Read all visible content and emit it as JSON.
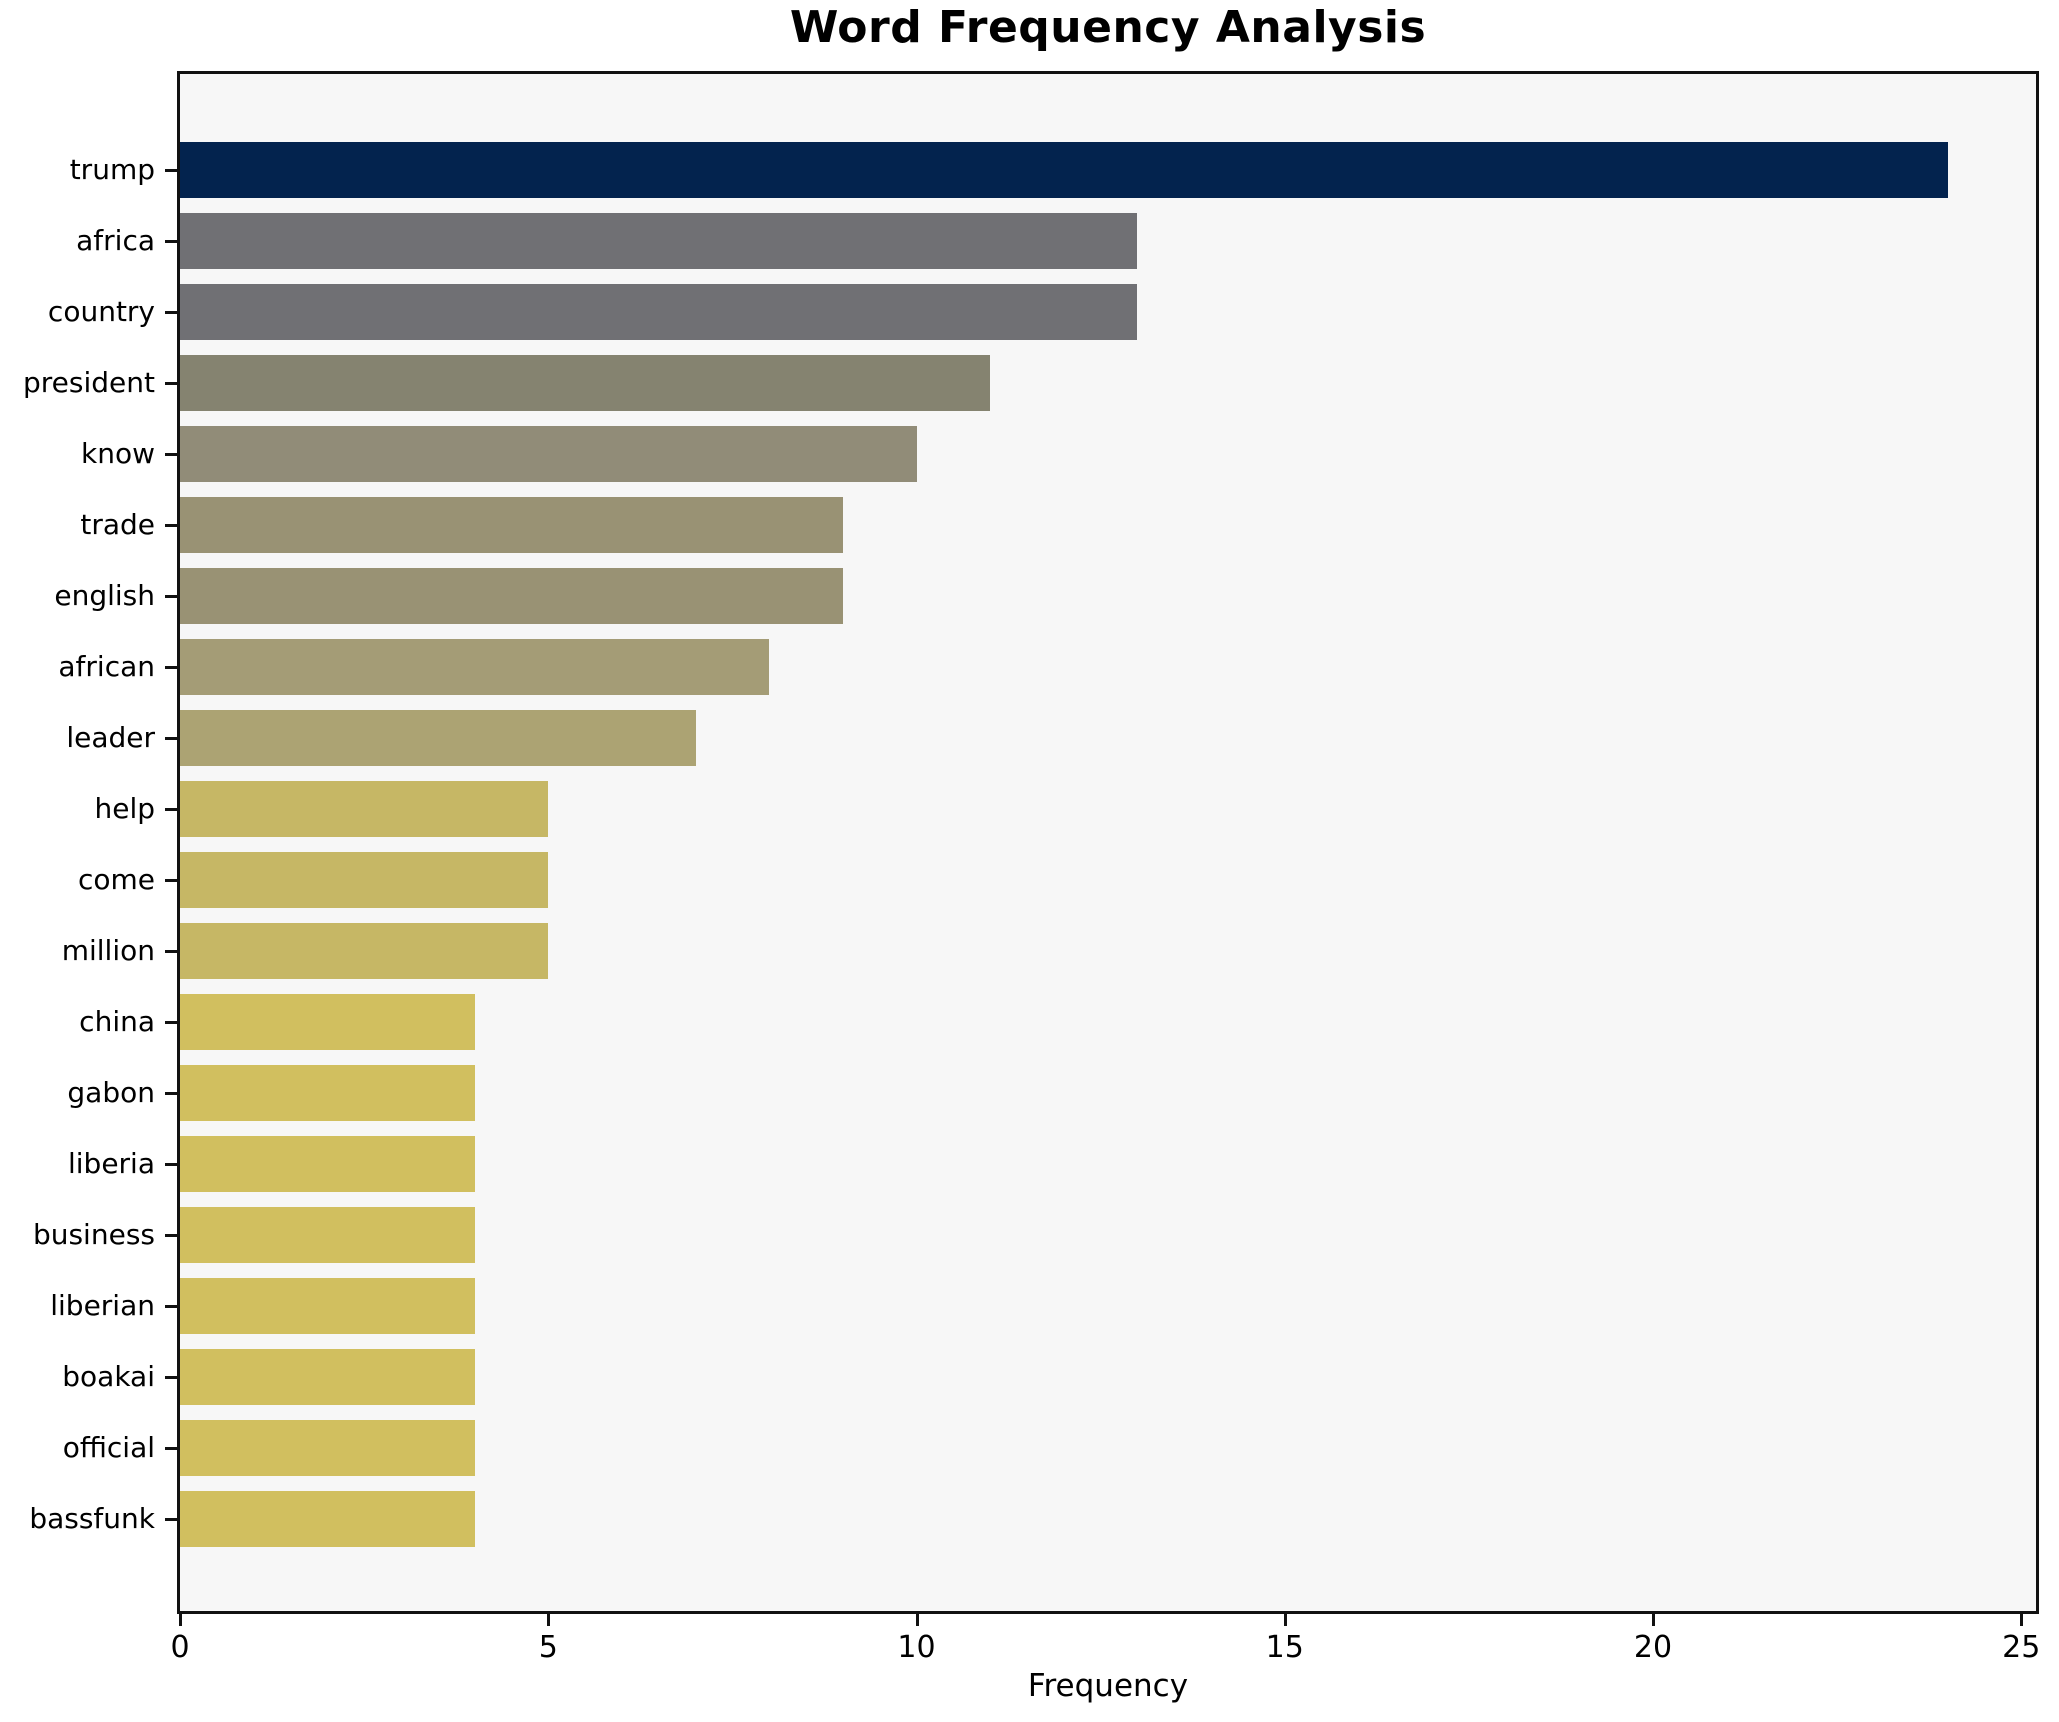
{
  "title": "Word Frequency Analysis",
  "chart_data": {
    "type": "bar",
    "orientation": "horizontal",
    "title": "Word Frequency Analysis",
    "xlabel": "Frequency",
    "ylabel": "",
    "categories": [
      "trump",
      "africa",
      "country",
      "president",
      "know",
      "trade",
      "english",
      "african",
      "leader",
      "help",
      "come",
      "million",
      "china",
      "gabon",
      "liberia",
      "business",
      "liberian",
      "boakai",
      "official",
      "bassfunk"
    ],
    "values": [
      24,
      13,
      13,
      11,
      10,
      9,
      9,
      8,
      7,
      5,
      5,
      5,
      4,
      4,
      4,
      4,
      4,
      4,
      4,
      4
    ],
    "bar_colors": [
      "#03234e",
      "#707074",
      "#707074",
      "#858370",
      "#918c78",
      "#999274",
      "#999274",
      "#a49c76",
      "#aca373",
      "#c6b765",
      "#c6b765",
      "#c6b765",
      "#d1bf5f",
      "#d1bf5f",
      "#d1bf5f",
      "#d1bf5f",
      "#d1bf5f",
      "#d1bf5f",
      "#d1bf5f",
      "#d1bf5f"
    ],
    "xlim": [
      0,
      25.2
    ],
    "xticks": [
      0,
      5,
      10,
      15,
      20,
      25
    ],
    "grid": false,
    "legend": null,
    "plot_background": "#f7f7f7",
    "figure_background": "#ffffff",
    "spine_color": "#111111",
    "text_color": "#000000"
  }
}
